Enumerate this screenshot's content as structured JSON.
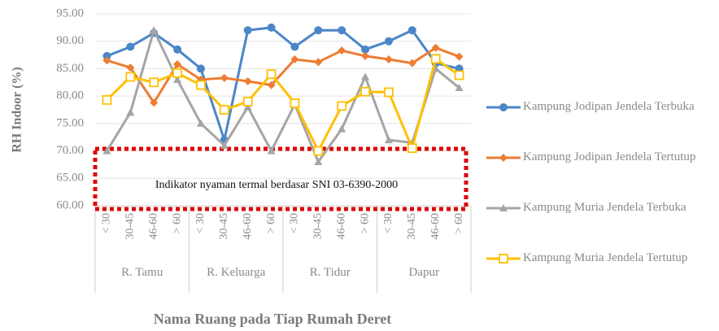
{
  "chart_data": {
    "type": "line",
    "y_label": "RH Indoor (%)",
    "x_label": "Nama Ruang pada Tiap Rumah Deret",
    "annotation": "Indikator nyaman termal berdasar SNI 03-6390-2000",
    "groups": [
      "R. Tamu",
      "R. Keluarga",
      "R. Tidur",
      "Dapur"
    ],
    "categories": [
      "< 30",
      "30-45",
      "46-60",
      "> 60",
      "< 30",
      "30-45",
      "46-60",
      "> 60",
      "< 30",
      "30-45",
      "46-60",
      "> 60",
      "< 30",
      "30-45",
      "46-60",
      "> 60"
    ],
    "series": [
      {
        "name": "Kampung Jodipan Jendela Terbuka",
        "color": "#4a86c8",
        "marker": "circle",
        "values": [
          87.3,
          89,
          91.5,
          88.5,
          85,
          72,
          92,
          92.5,
          89,
          92,
          92,
          88.5,
          90,
          92,
          86,
          85
        ]
      },
      {
        "name": "Kampung Jodipan Jendela Tertutup",
        "color": "#ed7d31",
        "marker": "diamond",
        "values": [
          86.5,
          85.2,
          78.8,
          85.8,
          83,
          83.3,
          82.7,
          82,
          86.7,
          86.2,
          88.3,
          87.3,
          86.7,
          86,
          88.8,
          87.2
        ]
      },
      {
        "name": "Kampung Muria Jendela Terbuka",
        "color": "#a5a5a5",
        "marker": "triangle",
        "values": [
          70,
          77,
          92,
          83,
          75,
          71,
          78,
          70,
          78.5,
          68,
          74,
          83.5,
          72,
          71.5,
          85,
          81.5
        ]
      },
      {
        "name": "Kampung Muria Jendela Tertutup",
        "color": "#ffc000",
        "marker": "square",
        "values": [
          79.3,
          83.5,
          82.5,
          84.2,
          82,
          77.5,
          79,
          84,
          78.7,
          70,
          78.2,
          80.8,
          80.7,
          70.5,
          86.8,
          83.8
        ]
      }
    ],
    "ylim": [
      60,
      95
    ],
    "yticks": [
      {
        "value": 60,
        "label": "60.00"
      },
      {
        "value": 65,
        "label": "65.00"
      },
      {
        "value": 70,
        "label": "70.00"
      },
      {
        "value": 75,
        "label": "75.00"
      },
      {
        "value": 80,
        "label": "80.00"
      },
      {
        "value": 85,
        "label": "85.00"
      },
      {
        "value": 90,
        "label": "90.00"
      },
      {
        "value": 95,
        "label": "95.00"
      }
    ],
    "grid": true,
    "legend": "right"
  }
}
